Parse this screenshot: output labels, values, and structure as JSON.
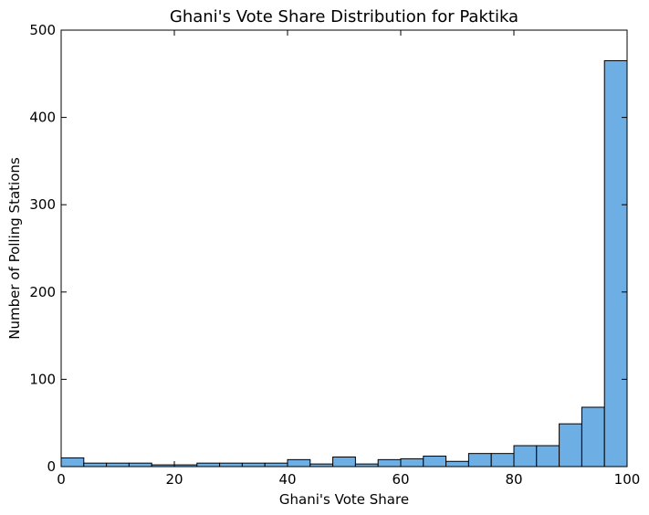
{
  "chart_data": {
    "type": "bar",
    "title": "Ghani's Vote Share Distribution for Paktika",
    "xlabel": "Ghani's Vote Share",
    "ylabel": "Number of Polling Stations",
    "xlim": [
      0,
      100
    ],
    "ylim": [
      0,
      500
    ],
    "xticks": [
      "0",
      "20",
      "40",
      "60",
      "80",
      "100"
    ],
    "yticks": [
      "0",
      "100",
      "200",
      "300",
      "400",
      "500"
    ],
    "bin_width": 4,
    "bins": [
      {
        "x0": 0,
        "x1": 4,
        "value": 10
      },
      {
        "x0": 4,
        "x1": 8,
        "value": 4
      },
      {
        "x0": 8,
        "x1": 12,
        "value": 4
      },
      {
        "x0": 12,
        "x1": 16,
        "value": 4
      },
      {
        "x0": 16,
        "x1": 20,
        "value": 2
      },
      {
        "x0": 20,
        "x1": 24,
        "value": 2
      },
      {
        "x0": 24,
        "x1": 28,
        "value": 4
      },
      {
        "x0": 28,
        "x1": 32,
        "value": 4
      },
      {
        "x0": 32,
        "x1": 36,
        "value": 4
      },
      {
        "x0": 36,
        "x1": 40,
        "value": 4
      },
      {
        "x0": 40,
        "x1": 44,
        "value": 8
      },
      {
        "x0": 44,
        "x1": 48,
        "value": 3
      },
      {
        "x0": 48,
        "x1": 52,
        "value": 11
      },
      {
        "x0": 52,
        "x1": 56,
        "value": 3
      },
      {
        "x0": 56,
        "x1": 60,
        "value": 8
      },
      {
        "x0": 60,
        "x1": 64,
        "value": 9
      },
      {
        "x0": 64,
        "x1": 68,
        "value": 12
      },
      {
        "x0": 68,
        "x1": 72,
        "value": 6
      },
      {
        "x0": 72,
        "x1": 76,
        "value": 15
      },
      {
        "x0": 76,
        "x1": 80,
        "value": 15
      },
      {
        "x0": 80,
        "x1": 84,
        "value": 24
      },
      {
        "x0": 84,
        "x1": 88,
        "value": 24
      },
      {
        "x0": 88,
        "x1": 92,
        "value": 49
      },
      {
        "x0": 92,
        "x1": 96,
        "value": 68
      },
      {
        "x0": 96,
        "x1": 100,
        "value": 465
      }
    ],
    "bar_color": "#6daee5",
    "grid": false
  }
}
